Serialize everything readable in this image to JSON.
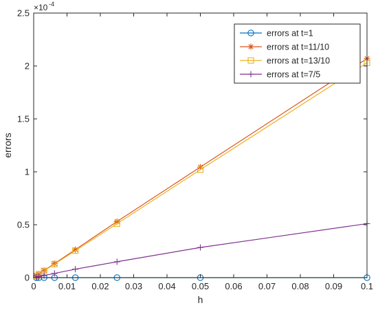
{
  "chart_data": {
    "type": "line",
    "xlabel": "h",
    "ylabel": "errors",
    "xlim": [
      0,
      0.1
    ],
    "ylim": [
      0,
      2.5
    ],
    "y_exponent_label": "×10",
    "y_exponent_power": "-4",
    "x_ticks": [
      "0",
      "0.01",
      "0.02",
      "0.03",
      "0.04",
      "0.05",
      "0.06",
      "0.07",
      "0.08",
      "0.09",
      "0.1"
    ],
    "y_ticks": [
      "0",
      "0.5",
      "1",
      "1.5",
      "2",
      "2.5"
    ],
    "x_tick_values": [
      0,
      0.01,
      0.02,
      0.03,
      0.04,
      0.05,
      0.06,
      0.07,
      0.08,
      0.09,
      0.1
    ],
    "y_tick_values": [
      0,
      0.5,
      1,
      1.5,
      2,
      2.5
    ],
    "grid": false,
    "legend_position": "top-right",
    "x": [
      0.1,
      0.05,
      0.025,
      0.0125,
      0.00625,
      0.003125,
      0.0015625,
      0.00078125
    ],
    "series": [
      {
        "name": "errors at t=1",
        "color": "#0072BD",
        "marker": "circle",
        "values": [
          0,
          0,
          0,
          0,
          0,
          0,
          0,
          0
        ]
      },
      {
        "name": "errors at t=11/10",
        "color": "#D95319",
        "marker": "asterisk",
        "values": [
          2.07,
          1.045,
          0.53,
          0.265,
          0.133,
          0.067,
          0.034,
          0.017
        ]
      },
      {
        "name": "errors at t=13/10",
        "color": "#EDB120",
        "marker": "square",
        "values": [
          2.03,
          1.02,
          0.51,
          0.255,
          0.128,
          0.064,
          0.032,
          0.016
        ]
      },
      {
        "name": "errors at t=7/5",
        "color": "#7E2F8E",
        "marker": "plus",
        "values": [
          0.51,
          0.285,
          0.15,
          0.08,
          0.04,
          0.02,
          0.01,
          0.005
        ]
      }
    ]
  }
}
